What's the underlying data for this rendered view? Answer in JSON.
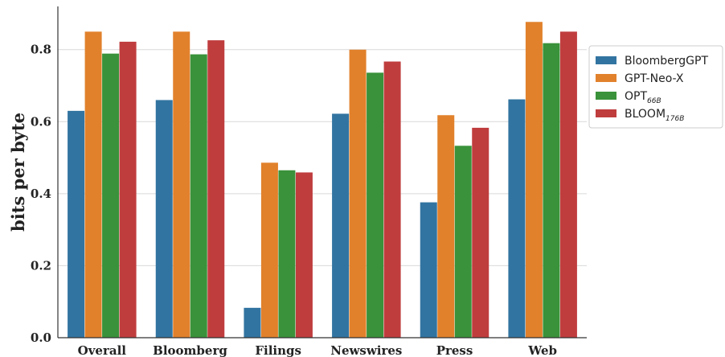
{
  "chart_data": {
    "type": "bar",
    "categories": [
      "Overall",
      "Bloomberg",
      "Filings",
      "Newswires",
      "Press",
      "Web"
    ],
    "ylabel": "bits per byte",
    "ylim": [
      0.0,
      0.92
    ],
    "yticks": [
      "0.0",
      "0.2",
      "0.4",
      "0.6",
      "0.8"
    ],
    "grid": "horizontal",
    "legend_position": "right",
    "series": [
      {
        "name": "BloombergGPT",
        "name_main": "BloombergGPT",
        "name_sub": "",
        "color": "#3274a1",
        "values": [
          0.63,
          0.66,
          0.083,
          0.622,
          0.376,
          0.662
        ]
      },
      {
        "name": "GPT-Neo-X",
        "name_main": "GPT-Neo-X",
        "name_sub": "",
        "color": "#e1812c",
        "values": [
          0.85,
          0.85,
          0.486,
          0.8,
          0.618,
          0.877
        ]
      },
      {
        "name": "OPT66B",
        "name_main": "OPT",
        "name_sub": "66B",
        "color": "#3a923a",
        "values": [
          0.789,
          0.787,
          0.465,
          0.736,
          0.533,
          0.818
        ]
      },
      {
        "name": "BLOOM176B",
        "name_main": "BLOOM",
        "name_sub": "176B",
        "color": "#c03d3e",
        "values": [
          0.822,
          0.826,
          0.459,
          0.767,
          0.583,
          0.85
        ]
      }
    ]
  }
}
